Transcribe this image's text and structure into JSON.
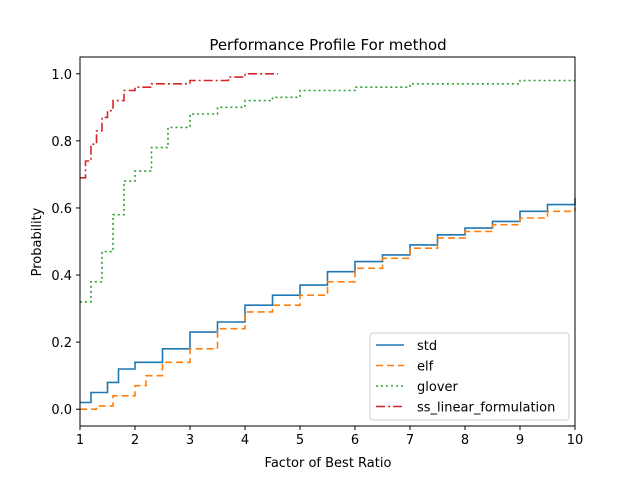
{
  "chart_data": {
    "type": "line",
    "title": "Performance Profile For method",
    "xlabel": "Factor of Best Ratio",
    "ylabel": "Probability",
    "xlim": [
      1,
      10
    ],
    "ylim": [
      -0.05,
      1.05
    ],
    "xticks": [
      1,
      2,
      3,
      4,
      5,
      6,
      7,
      8,
      9,
      10
    ],
    "yticks": [
      0.0,
      0.2,
      0.4,
      0.6,
      0.8,
      1.0
    ],
    "xtick_labels": [
      "1",
      "2",
      "3",
      "4",
      "5",
      "6",
      "7",
      "8",
      "9",
      "10"
    ],
    "ytick_labels": [
      "0.0",
      "0.2",
      "0.4",
      "0.6",
      "0.8",
      "1.0"
    ],
    "grid": false,
    "legend_position": "bottom-right",
    "series": [
      {
        "name": "std",
        "color": "#1f77b4",
        "dash": "solid",
        "points": [
          [
            1.0,
            0.02
          ],
          [
            1.2,
            0.05
          ],
          [
            1.5,
            0.08
          ],
          [
            1.7,
            0.12
          ],
          [
            2.0,
            0.14
          ],
          [
            2.5,
            0.18
          ],
          [
            3.0,
            0.23
          ],
          [
            3.5,
            0.26
          ],
          [
            4.0,
            0.31
          ],
          [
            4.5,
            0.34
          ],
          [
            5.0,
            0.37
          ],
          [
            5.5,
            0.41
          ],
          [
            6.0,
            0.44
          ],
          [
            6.5,
            0.46
          ],
          [
            7.0,
            0.49
          ],
          [
            7.5,
            0.52
          ],
          [
            8.0,
            0.54
          ],
          [
            8.5,
            0.56
          ],
          [
            9.0,
            0.59
          ],
          [
            9.5,
            0.61
          ],
          [
            10.0,
            0.63
          ]
        ]
      },
      {
        "name": "elf",
        "color": "#ff7f0e",
        "dash": "dashed",
        "points": [
          [
            1.0,
            0.0
          ],
          [
            1.3,
            0.01
          ],
          [
            1.6,
            0.04
          ],
          [
            2.0,
            0.07
          ],
          [
            2.2,
            0.1
          ],
          [
            2.5,
            0.14
          ],
          [
            3.0,
            0.18
          ],
          [
            3.5,
            0.24
          ],
          [
            4.0,
            0.29
          ],
          [
            4.5,
            0.31
          ],
          [
            5.0,
            0.34
          ],
          [
            5.5,
            0.38
          ],
          [
            6.0,
            0.42
          ],
          [
            6.5,
            0.45
          ],
          [
            7.0,
            0.48
          ],
          [
            7.5,
            0.51
          ],
          [
            8.0,
            0.53
          ],
          [
            8.5,
            0.55
          ],
          [
            9.0,
            0.57
          ],
          [
            9.5,
            0.59
          ],
          [
            10.0,
            0.6
          ]
        ]
      },
      {
        "name": "glover",
        "color": "#2ca02c",
        "dash": "dotted",
        "points": [
          [
            1.0,
            0.32
          ],
          [
            1.2,
            0.38
          ],
          [
            1.4,
            0.47
          ],
          [
            1.6,
            0.58
          ],
          [
            1.8,
            0.68
          ],
          [
            2.0,
            0.71
          ],
          [
            2.3,
            0.78
          ],
          [
            2.6,
            0.84
          ],
          [
            3.0,
            0.88
          ],
          [
            3.5,
            0.9
          ],
          [
            4.0,
            0.92
          ],
          [
            4.5,
            0.93
          ],
          [
            5.0,
            0.95
          ],
          [
            6.0,
            0.96
          ],
          [
            7.0,
            0.97
          ],
          [
            8.0,
            0.97
          ],
          [
            9.0,
            0.98
          ],
          [
            10.0,
            0.98
          ]
        ]
      },
      {
        "name": "ss_linear_formulation",
        "color": "#d62728",
        "dash": "dashdot",
        "points": [
          [
            1.0,
            0.69
          ],
          [
            1.1,
            0.74
          ],
          [
            1.2,
            0.79
          ],
          [
            1.3,
            0.83
          ],
          [
            1.4,
            0.87
          ],
          [
            1.5,
            0.89
          ],
          [
            1.6,
            0.92
          ],
          [
            1.8,
            0.95
          ],
          [
            2.0,
            0.96
          ],
          [
            2.3,
            0.97
          ],
          [
            3.0,
            0.98
          ],
          [
            3.7,
            0.99
          ],
          [
            4.0,
            1.0
          ],
          [
            4.6,
            1.0
          ]
        ]
      }
    ]
  }
}
